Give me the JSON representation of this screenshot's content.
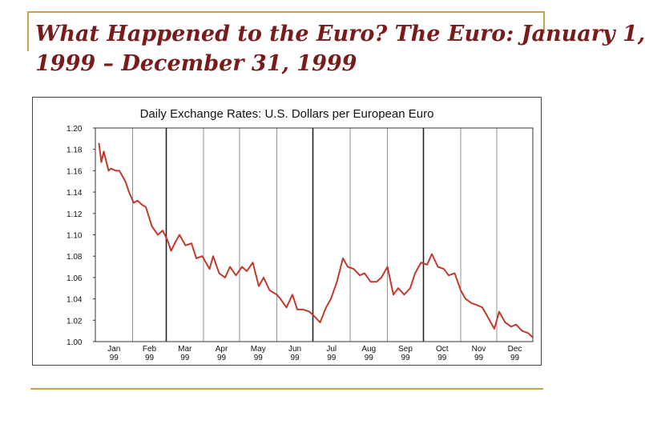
{
  "slide": {
    "title_line1": "What Happened to the Euro? The Euro: January 1,",
    "title_line2": "1999 – December 31, 1999",
    "accent_color": "#c9a24a",
    "title_color": "#7a1b1b"
  },
  "chart_data": {
    "type": "line",
    "title": "Daily Exchange Rates: U.S. Dollars per European Euro",
    "xlabel": "",
    "ylabel": "",
    "ylim": [
      1.0,
      1.2
    ],
    "yticks": [
      "1.20",
      "1.18",
      "1.16",
      "1.14",
      "1.12",
      "1.10",
      "1.08",
      "1.06",
      "1.04",
      "1.02",
      "1.00"
    ],
    "xticks": [
      {
        "month": "Jan",
        "year": "99"
      },
      {
        "month": "Feb",
        "year": "99"
      },
      {
        "month": "Mar",
        "year": "99"
      },
      {
        "month": "Apr",
        "year": "99"
      },
      {
        "month": "May",
        "year": "99"
      },
      {
        "month": "Jun",
        "year": "99"
      },
      {
        "month": "Jul",
        "year": "99"
      },
      {
        "month": "Aug",
        "year": "99"
      },
      {
        "month": "Sep",
        "year": "99"
      },
      {
        "month": "Oct",
        "year": "99"
      },
      {
        "month": "Nov",
        "year": "99"
      },
      {
        "month": "Dec",
        "year": "99"
      }
    ],
    "grid": "vertical",
    "line_color": "#c0392b",
    "series": [
      {
        "x": [
          "1999-01-04",
          "1999-01-06",
          "1999-01-08",
          "1999-01-12",
          "1999-01-14",
          "1999-01-18",
          "1999-01-21",
          "1999-01-26",
          "1999-01-29",
          "1999-02-02",
          "1999-02-05",
          "1999-02-09",
          "1999-02-12",
          "1999-02-17",
          "1999-02-22",
          "1999-02-26",
          "1999-03-02",
          "1999-03-05",
          "1999-03-09",
          "1999-03-12",
          "1999-03-17",
          "1999-03-22",
          "1999-03-26",
          "1999-03-31",
          "1999-04-06",
          "1999-04-09",
          "1999-04-14",
          "1999-04-19",
          "1999-04-23",
          "1999-04-28",
          "1999-05-03",
          "1999-05-07",
          "1999-05-12",
          "1999-05-17",
          "1999-05-21",
          "1999-05-26",
          "1999-06-01",
          "1999-06-04",
          "1999-06-09",
          "1999-06-14",
          "1999-06-18",
          "1999-06-23",
          "1999-06-28",
          "1999-07-02",
          "1999-07-07",
          "1999-07-12",
          "1999-07-16",
          "1999-07-21",
          "1999-07-26",
          "1999-07-30",
          "1999-08-04",
          "1999-08-09",
          "1999-08-13",
          "1999-08-18",
          "1999-08-23",
          "1999-08-27",
          "1999-09-01",
          "1999-09-06",
          "1999-09-10",
          "1999-09-15",
          "1999-09-20",
          "1999-09-24",
          "1999-09-29",
          "1999-10-04",
          "1999-10-08",
          "1999-10-13",
          "1999-10-18",
          "1999-10-22",
          "1999-10-27",
          "1999-11-01",
          "1999-11-05",
          "1999-11-10",
          "1999-11-15",
          "1999-11-19",
          "1999-11-24",
          "1999-11-29",
          "1999-12-03",
          "1999-12-08",
          "1999-12-13",
          "1999-12-17",
          "1999-12-22",
          "1999-12-27",
          "1999-12-31"
        ],
        "values": [
          1.186,
          1.168,
          1.178,
          1.16,
          1.162,
          1.16,
          1.16,
          1.15,
          1.14,
          1.13,
          1.132,
          1.128,
          1.126,
          1.108,
          1.1,
          1.104,
          1.095,
          1.085,
          1.094,
          1.1,
          1.09,
          1.092,
          1.078,
          1.08,
          1.068,
          1.08,
          1.064,
          1.06,
          1.07,
          1.062,
          1.07,
          1.066,
          1.074,
          1.052,
          1.06,
          1.048,
          1.044,
          1.04,
          1.032,
          1.044,
          1.03,
          1.03,
          1.028,
          1.024,
          1.018,
          1.032,
          1.04,
          1.056,
          1.078,
          1.07,
          1.068,
          1.062,
          1.064,
          1.056,
          1.056,
          1.06,
          1.07,
          1.044,
          1.05,
          1.044,
          1.05,
          1.064,
          1.074,
          1.072,
          1.082,
          1.07,
          1.068,
          1.062,
          1.064,
          1.048,
          1.04,
          1.036,
          1.034,
          1.032,
          1.022,
          1.012,
          1.028,
          1.018,
          1.014,
          1.016,
          1.01,
          1.008,
          1.004
        ]
      }
    ]
  }
}
